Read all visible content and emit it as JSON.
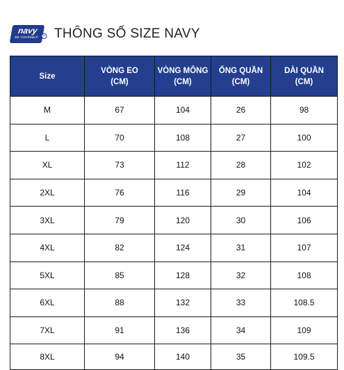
{
  "logo": {
    "word": "navy",
    "tagline": "BE YOURSELF",
    "registered": "R",
    "color": "#1f3c8c"
  },
  "title": "THÔNG SỐ SIZE NAVY",
  "table": {
    "header_color": "#233f8e",
    "columns": [
      [
        "Size"
      ],
      [
        "VÒNG EO",
        "(CM)"
      ],
      [
        "VÒNG MÔNG",
        "(CM)"
      ],
      [
        "ỐNG QUẦN",
        "(CM)"
      ],
      [
        "DÀI QUẦN",
        "(CM)"
      ]
    ],
    "rows": [
      [
        "M",
        "67",
        "104",
        "26",
        "98"
      ],
      [
        "L",
        "70",
        "108",
        "27",
        "100"
      ],
      [
        "XL",
        "73",
        "112",
        "28",
        "102"
      ],
      [
        "2XL",
        "76",
        "116",
        "29",
        "104"
      ],
      [
        "3XL",
        "79",
        "120",
        "30",
        "106"
      ],
      [
        "4XL",
        "82",
        "124",
        "31",
        "107"
      ],
      [
        "5XL",
        "85",
        "128",
        "32",
        "108"
      ],
      [
        "6XL",
        "88",
        "132",
        "33",
        "108.5"
      ],
      [
        "7XL",
        "91",
        "136",
        "34",
        "109"
      ],
      [
        "8XL",
        "94",
        "140",
        "35",
        "109.5"
      ]
    ]
  }
}
